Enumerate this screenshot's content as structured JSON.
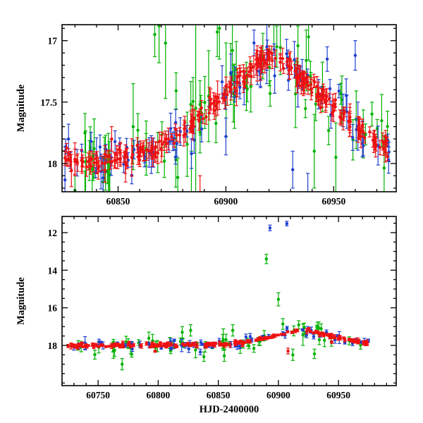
{
  "figure": {
    "background": "#ffffff",
    "frame_color": "#000000",
    "text_color": "#000000"
  },
  "chart_data": [
    {
      "id": "top",
      "type": "scatter",
      "title": "",
      "xlabel": "",
      "ylabel": "Magnitude",
      "xlim": [
        60824,
        60979
      ],
      "ylim": {
        "top": 16.87,
        "bottom": 18.23
      },
      "y_inverted": true,
      "xticks": [
        60850,
        60900,
        60950
      ],
      "xtick_labels": [
        "60850",
        "60900",
        "60950"
      ],
      "x_minor_step": 10,
      "yticks": [
        17,
        17.5,
        18
      ],
      "ytick_labels": [
        "17",
        "17.5",
        "18"
      ],
      "y_minor_step": 0.1,
      "data_range": [
        60825,
        60976
      ],
      "mean_curve": [
        [
          60823,
          18.0
        ],
        [
          60835,
          17.99
        ],
        [
          60850,
          17.96
        ],
        [
          60860,
          17.93
        ],
        [
          60870,
          17.85
        ],
        [
          60880,
          17.72
        ],
        [
          60890,
          17.58
        ],
        [
          60900,
          17.42
        ],
        [
          60910,
          17.27
        ],
        [
          60918,
          17.14
        ],
        [
          60922,
          17.12
        ],
        [
          60928,
          17.2
        ],
        [
          60938,
          17.35
        ],
        [
          60948,
          17.5
        ],
        [
          60958,
          17.65
        ],
        [
          60968,
          17.8
        ],
        [
          60976,
          17.88
        ]
      ],
      "series": [
        {
          "name": "green",
          "color": "#00b200",
          "n": 70,
          "sigma": 0.13,
          "err_min": 0.07,
          "err_max": 0.28,
          "seed": 11,
          "outliers": [
            [
              60830,
              18.22,
              0.12
            ],
            [
              60838,
              18.35,
              0.3
            ],
            [
              60843,
              18.15,
              0.2
            ],
            [
              60857,
              17.7,
              0.35
            ],
            [
              60867,
              16.95,
              0.18
            ],
            [
              60869,
              16.88,
              0.3
            ],
            [
              60872,
              17.02,
              0.45
            ],
            [
              60884,
              18.3,
              0.4
            ],
            [
              60886,
              17.55,
              0.8
            ],
            [
              60896,
              16.93,
              0.2
            ],
            [
              60897,
              16.9,
              0.25
            ],
            [
              60903,
              17.08,
              0.25
            ],
            [
              60941,
              17.9,
              0.3
            ],
            [
              60951,
              17.95,
              0.28
            ]
          ]
        },
        {
          "name": "blue",
          "color": "#2040d0",
          "n": 85,
          "sigma": 0.08,
          "err_min": 0.04,
          "err_max": 0.16,
          "seed": 22,
          "outliers": [
            [
              60827,
              17.8,
              0.12
            ],
            [
              60884,
              17.92,
              0.12
            ],
            [
              60900,
              17.78,
              0.15
            ],
            [
              60919,
              17.05,
              0.3
            ],
            [
              60931,
              18.05,
              0.15
            ],
            [
              60938,
              18.28,
              0.2
            ],
            [
              60947,
              17.15,
              0.1
            ],
            [
              60960,
              17.12,
              0.12
            ]
          ]
        },
        {
          "name": "red",
          "color": "#ee1111",
          "n": 270,
          "sigma": 0.035,
          "err_min": 0.025,
          "err_max": 0.09,
          "seed": 33,
          "outliers": [
            [
              60847,
              17.8,
              0.1
            ],
            [
              60888,
              18.4,
              0.3
            ]
          ]
        }
      ]
    },
    {
      "id": "bottom",
      "type": "scatter",
      "title": "",
      "xlabel": "HJD-2400000",
      "ylabel": "Magnitude",
      "xlim": [
        60720,
        60998
      ],
      "ylim": {
        "top": 11.14,
        "bottom": 20.14
      },
      "y_inverted": true,
      "xticks": [
        60750,
        60800,
        60850,
        60900,
        60950
      ],
      "xtick_labels": [
        "60750",
        "60800",
        "60850",
        "60900",
        "60950"
      ],
      "x_minor_step": 10,
      "yticks": [
        12,
        14,
        16,
        18
      ],
      "ytick_labels": [
        "12",
        "14",
        "16",
        "18"
      ],
      "y_minor_step": 0.5,
      "data_range": [
        60725,
        60975
      ],
      "mean_curve": [
        [
          60725,
          18.02
        ],
        [
          60750,
          18.0
        ],
        [
          60775,
          18.0
        ],
        [
          60800,
          17.98
        ],
        [
          60825,
          17.97
        ],
        [
          60850,
          17.95
        ],
        [
          60860,
          17.93
        ],
        [
          60875,
          17.8
        ],
        [
          60890,
          17.6
        ],
        [
          60905,
          17.35
        ],
        [
          60920,
          17.15
        ],
        [
          60935,
          17.35
        ],
        [
          60950,
          17.6
        ],
        [
          60965,
          17.8
        ],
        [
          60975,
          17.9
        ]
      ],
      "series": [
        {
          "name": "green",
          "color": "#00b200",
          "n": 55,
          "sigma": 0.22,
          "err_min": 0.1,
          "err_max": 0.35,
          "seed": 44,
          "outliers": [
            [
              60770,
              19.0,
              0.3
            ],
            [
              60820,
              17.3,
              0.3
            ],
            [
              60827,
              17.2,
              0.3
            ],
            [
              60838,
              18.6,
              0.25
            ],
            [
              60855,
              18.55,
              0.3
            ],
            [
              60862,
              17.2,
              0.3
            ],
            [
              60890,
              13.4,
              0.25
            ],
            [
              60900,
              15.55,
              0.35
            ],
            [
              60912,
              18.5,
              0.3
            ],
            [
              60930,
              18.45,
              0.25
            ]
          ]
        },
        {
          "name": "blue",
          "color": "#2040d0",
          "n": 60,
          "sigma": 0.12,
          "err_min": 0.05,
          "err_max": 0.2,
          "seed": 55,
          "outliers": [
            [
              60835,
              18.35,
              0.15
            ],
            [
              60873,
              17.55,
              0.15
            ],
            [
              60893,
              11.75,
              0.15
            ],
            [
              60907,
              11.52,
              0.12
            ],
            [
              60940,
              17.3,
              0.12
            ]
          ]
        },
        {
          "name": "red",
          "color": "#ee1111",
          "n": 200,
          "sigma": 0.045,
          "err_min": 0.03,
          "err_max": 0.1,
          "seed": 66,
          "outliers": [
            [
              60908,
              18.3,
              0.15
            ]
          ]
        }
      ]
    }
  ]
}
